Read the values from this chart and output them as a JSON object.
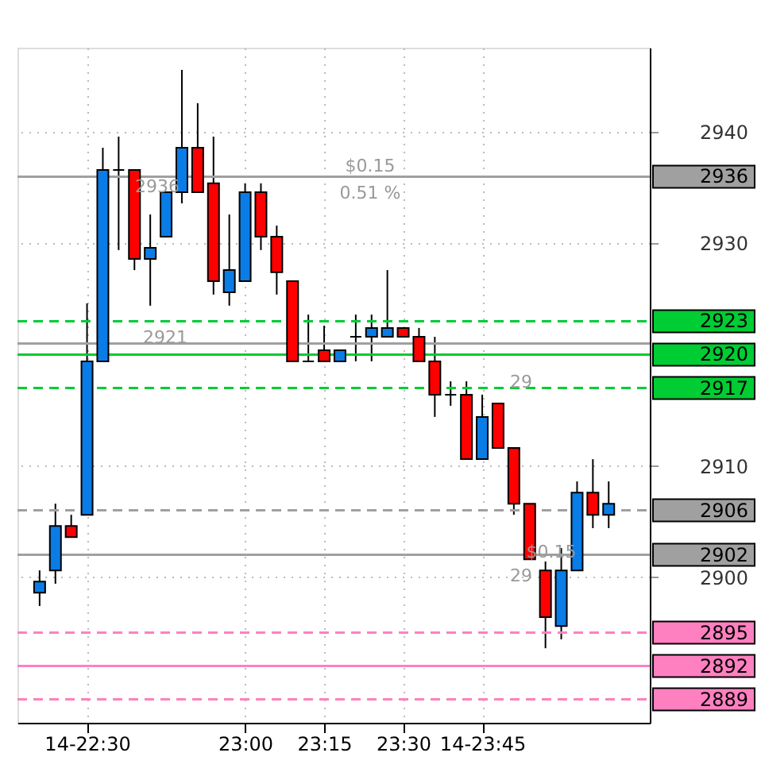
{
  "chart_data": {
    "type": "candlestick",
    "x": [
      22.35,
      22.4,
      22.45,
      22.5,
      22.55,
      22.6,
      22.65,
      22.7,
      22.75,
      22.8,
      22.85,
      22.9,
      22.95,
      23.0,
      23.05,
      23.1,
      23.15,
      23.2,
      23.25,
      23.3,
      23.35,
      23.4,
      23.45,
      23.5,
      23.55,
      23.6,
      23.65,
      23.7,
      23.75,
      23.8,
      23.85,
      23.9,
      23.95,
      24.0,
      24.05,
      24.1,
      24.15
    ],
    "ohlc": [
      [
        2898.6,
        2900.6,
        2897.4,
        2899.6
      ],
      [
        2900.6,
        2906.6,
        2899.4,
        2904.6
      ],
      [
        2904.6,
        2905.6,
        2903.6,
        2903.6
      ],
      [
        2905.6,
        2924.6,
        2905.6,
        2919.4
      ],
      [
        2919.4,
        2938.6,
        2919.4,
        2936.6
      ],
      [
        2936.6,
        2939.6,
        2929.4,
        2936.6
      ],
      [
        2936.6,
        2936.6,
        2927.6,
        2928.6
      ],
      [
        2928.6,
        2932.6,
        2924.4,
        2929.6
      ],
      [
        2930.6,
        2934.6,
        2930.6,
        2934.6
      ],
      [
        2934.6,
        2945.6,
        2933.6,
        2938.6
      ],
      [
        2938.6,
        2942.6,
        2934.6,
        2934.6
      ],
      [
        2935.4,
        2939.6,
        2925.4,
        2926.6
      ],
      [
        2925.6,
        2932.6,
        2924.4,
        2927.6
      ],
      [
        2926.6,
        2935.4,
        2926.6,
        2934.6
      ],
      [
        2934.6,
        2935.4,
        2929.4,
        2930.6
      ],
      [
        2930.6,
        2931.6,
        2925.4,
        2927.4
      ],
      [
        2926.6,
        2926.6,
        2919.4,
        2919.4
      ],
      [
        2919.4,
        2923.6,
        2919.4,
        2919.4
      ],
      [
        2920.4,
        2922.6,
        2919.4,
        2919.4
      ],
      [
        2919.4,
        2920.4,
        2919.4,
        2920.4
      ],
      [
        2921.6,
        2923.6,
        2919.4,
        2921.6
      ],
      [
        2921.6,
        2923.6,
        2919.4,
        2922.4
      ],
      [
        2921.6,
        2927.6,
        2921.6,
        2922.4
      ],
      [
        2922.4,
        2922.4,
        2921.6,
        2921.6
      ],
      [
        2921.6,
        2922.4,
        2919.4,
        2919.4
      ],
      [
        2919.4,
        2921.6,
        2914.4,
        2916.4
      ],
      [
        2916.4,
        2917.6,
        2915.4,
        2916.4
      ],
      [
        2916.4,
        2917.6,
        2910.6,
        2910.6
      ],
      [
        2910.6,
        2916.4,
        2910.6,
        2914.4
      ],
      [
        2915.6,
        2915.6,
        2911.6,
        2911.6
      ],
      [
        2911.6,
        2911.6,
        2905.6,
        2906.6
      ],
      [
        2906.6,
        2906.6,
        2901.6,
        2901.6
      ],
      [
        2900.6,
        2901.4,
        2893.6,
        2896.4
      ],
      [
        2895.6,
        2902.6,
        2894.4,
        2900.6
      ],
      [
        2900.6,
        2908.6,
        2900.6,
        2907.6
      ],
      [
        2907.6,
        2910.6,
        2904.4,
        2905.6
      ],
      [
        2905.6,
        2908.6,
        2904.4,
        2906.6
      ]
    ],
    "colors": [
      "#0a7ce6",
      "#0a7ce6",
      "#ff0000",
      "#0a7ce6",
      "#0a7ce6",
      "#000000",
      "#ff0000",
      "#0a7ce6",
      "#0a7ce6",
      "#0a7ce6",
      "#ff0000",
      "#ff0000",
      "#0a7ce6",
      "#0a7ce6",
      "#ff0000",
      "#ff0000",
      "#ff0000",
      "#000000",
      "#ff0000",
      "#0a7ce6",
      "#000000",
      "#0a7ce6",
      "#0a7ce6",
      "#ff0000",
      "#ff0000",
      "#ff0000",
      "#000000",
      "#ff0000",
      "#0a7ce6",
      "#ff0000",
      "#ff0000",
      "#ff0000",
      "#ff0000",
      "#0a7ce6",
      "#0a7ce6",
      "#ff0000",
      "#0a7ce6"
    ],
    "xlim": [
      22.28,
      24.28
    ],
    "xticks": [
      {
        "value": 22.5,
        "label": "14-22:30"
      },
      {
        "value": 23.0,
        "label": "23:00"
      },
      {
        "value": 23.25,
        "label": "23:15"
      },
      {
        "value": 23.5,
        "label": "23:30"
      },
      {
        "value": 23.75,
        "label": "14-23:45"
      }
    ],
    "ylim": [
      2886.9,
      2947.6
    ],
    "yticks": [
      2900,
      2910,
      2930,
      2940
    ],
    "grid": true,
    "ref_lines": [
      {
        "axis": "y",
        "value": 2936,
        "label": "2936",
        "color": "#a0a0a0",
        "line_style": "solid"
      },
      {
        "axis": "y",
        "value": 2923,
        "label": "2923",
        "color": "#00cc33",
        "line_style": "dashed"
      },
      {
        "axis": "y",
        "value": 2921,
        "label": null,
        "color": "#a0a0a0",
        "line_style": "solid"
      },
      {
        "axis": "y",
        "value": 2920,
        "label": "2920",
        "color": "#00cc33",
        "line_style": "solid"
      },
      {
        "axis": "y",
        "value": 2917,
        "label": "2917",
        "color": "#00cc33",
        "line_style": "dashed"
      },
      {
        "axis": "y",
        "value": 2906,
        "label": "2906",
        "color": "#a0a0a0",
        "line_style": "dashed"
      },
      {
        "axis": "y",
        "value": 2902,
        "label": "2902",
        "color": "#a0a0a0",
        "line_style": "solid"
      },
      {
        "axis": "y",
        "value": 2895,
        "label": "2895",
        "color": "#ff80c0",
        "line_style": "dashed"
      },
      {
        "axis": "y",
        "value": 2892,
        "label": "2892",
        "color": "#ff80c0",
        "line_style": "solid"
      },
      {
        "axis": "y",
        "value": 2889,
        "label": "2889",
        "color": "#ff80c0",
        "line_style": "dashed"
      }
    ],
    "annotations": [
      "$0.15",
      "0.51 %",
      "2936",
      "2921",
      "29",
      "29",
      "$0.15"
    ]
  }
}
